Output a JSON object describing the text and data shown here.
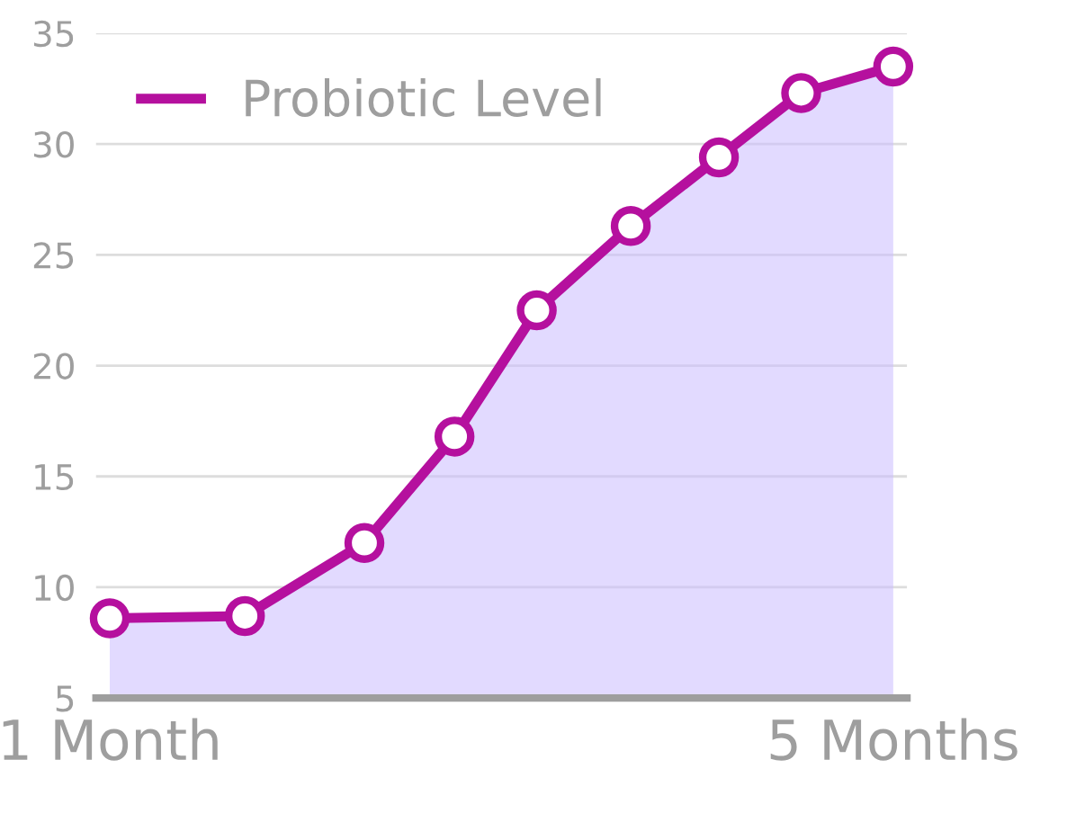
{
  "chart_data": {
    "type": "area",
    "x": [
      1,
      1.69,
      2.3,
      2.76,
      3.18,
      3.66,
      4.11,
      4.53,
      5
    ],
    "series": [
      {
        "name": "Probiotic Level",
        "color": "#b5109e",
        "values": [
          8.6,
          8.7,
          12.0,
          16.8,
          22.5,
          26.3,
          29.4,
          32.3,
          33.5
        ]
      }
    ],
    "xlim": [
      0.93,
      5.07
    ],
    "xticks": [
      {
        "value": 1,
        "label": "1 Month"
      },
      {
        "value": 5,
        "label": "5 Months"
      }
    ],
    "ylim": [
      5,
      35
    ],
    "yticks": [
      5,
      10,
      15,
      20,
      25,
      30,
      35
    ],
    "grid": "y",
    "legend": "top left",
    "marker": "circle"
  }
}
